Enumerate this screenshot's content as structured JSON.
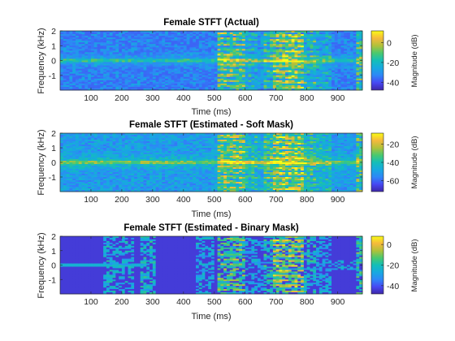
{
  "chart_data": [
    {
      "type": "heatmap",
      "title": "Female STFT (Actual)",
      "xlabel": "Time (ms)",
      "ylabel": "Frequency (kHz)",
      "xlim": [
        0,
        980
      ],
      "ylim": [
        -2,
        2
      ],
      "xticks": [
        100,
        200,
        300,
        400,
        500,
        600,
        700,
        800,
        900
      ],
      "yticks": [
        -1,
        0,
        1,
        2
      ],
      "colorbar": {
        "label": "Magnitude (dB)",
        "range": [
          -48,
          12
        ],
        "ticks": [
          0,
          -20,
          -40
        ]
      },
      "style": "full",
      "colormap": [
        "#3e26a8",
        "#4748f3",
        "#2e87f7",
        "#17a9e0",
        "#14beb8",
        "#4ac96e",
        "#b1c13a",
        "#f6b93c",
        "#f9fb15"
      ]
    },
    {
      "type": "heatmap",
      "title": "Female STFT (Estimated - Soft Mask)",
      "xlabel": "Time (ms)",
      "ylabel": "Frequency (kHz)",
      "xlim": [
        0,
        980
      ],
      "ylim": [
        -2,
        2
      ],
      "xticks": [
        100,
        200,
        300,
        400,
        500,
        600,
        700,
        800,
        900
      ],
      "yticks": [
        -1,
        0,
        1,
        2
      ],
      "colorbar": {
        "label": "Magnitude (dB)",
        "range": [
          -72,
          -8
        ],
        "ticks": [
          -20,
          -40,
          -60
        ]
      },
      "style": "soft",
      "colormap": [
        "#3e26a8",
        "#4748f3",
        "#2e87f7",
        "#17a9e0",
        "#14beb8",
        "#4ac96e",
        "#b1c13a",
        "#f6b93c",
        "#f9fb15"
      ]
    },
    {
      "type": "heatmap",
      "title": "Female STFT (Estimated - Binary Mask)",
      "xlabel": "Time (ms)",
      "ylabel": "Frequency (kHz)",
      "xlim": [
        0,
        980
      ],
      "ylim": [
        -2,
        2
      ],
      "xticks": [
        100,
        200,
        300,
        400,
        500,
        600,
        700,
        800,
        900
      ],
      "yticks": [
        -1,
        0,
        1,
        2
      ],
      "colorbar": {
        "label": "Magnitude (dB)",
        "range": [
          -48,
          8
        ],
        "ticks": [
          0,
          -20,
          -40
        ]
      },
      "style": "binary",
      "colormap": [
        "#3e26a8",
        "#4748f3",
        "#2e87f7",
        "#17a9e0",
        "#14beb8",
        "#4ac96e",
        "#b1c13a",
        "#f6b93c",
        "#f9fb15"
      ]
    }
  ]
}
